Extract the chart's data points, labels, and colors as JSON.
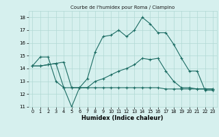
{
  "title": "Courbe de l'humidex pour Roma / Ciampino",
  "xlabel": "Humidex (Indice chaleur)",
  "background_color": "#d6f0ee",
  "grid_color": "#b0d8d4",
  "line_color": "#1a6b62",
  "xlim": [
    -0.5,
    23.5
  ],
  "ylim": [
    11,
    18.5
  ],
  "yticks": [
    11,
    12,
    13,
    14,
    15,
    16,
    17,
    18
  ],
  "xticks": [
    0,
    1,
    2,
    3,
    4,
    5,
    6,
    7,
    8,
    9,
    10,
    11,
    12,
    13,
    14,
    15,
    16,
    17,
    18,
    19,
    20,
    21,
    22,
    23
  ],
  "series": [
    [
      14.2,
      14.9,
      14.9,
      13.0,
      12.5,
      11.0,
      12.5,
      13.2,
      15.3,
      16.5,
      16.6,
      17.0,
      16.5,
      17.0,
      18.0,
      17.5,
      16.8,
      16.8,
      15.9,
      14.8,
      13.8,
      13.8,
      12.3,
      12.3
    ],
    [
      14.2,
      14.2,
      14.3,
      14.4,
      14.5,
      12.5,
      12.5,
      12.5,
      13.0,
      13.2,
      13.5,
      13.8,
      14.0,
      14.3,
      14.8,
      14.7,
      14.8,
      13.8,
      13.0,
      12.5,
      12.5,
      12.4,
      12.4,
      12.4
    ],
    [
      14.2,
      14.2,
      14.3,
      14.4,
      12.5,
      12.5,
      12.5,
      12.5,
      12.5,
      12.5,
      12.5,
      12.5,
      12.5,
      12.5,
      12.5,
      12.5,
      12.5,
      12.4,
      12.4,
      12.4,
      12.4,
      12.4,
      12.4,
      12.4
    ]
  ]
}
